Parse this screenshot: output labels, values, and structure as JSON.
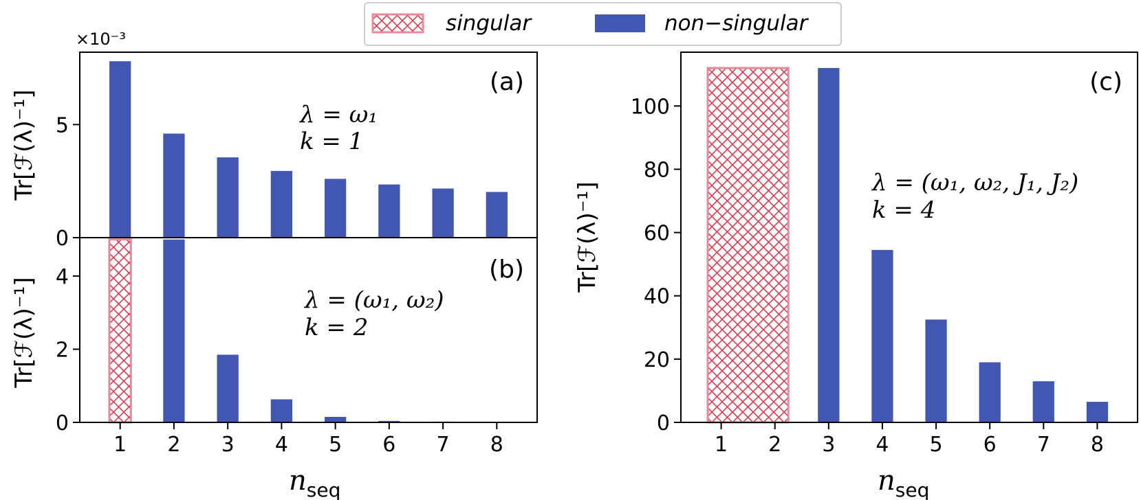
{
  "colors": {
    "nonsingular": "#4257b2",
    "singular_edge": "#e8899a",
    "singular_hatch": "#d83a4e"
  },
  "legend": {
    "singular": "singular",
    "nonsingular": "non−singular"
  },
  "chart_data": [
    {
      "panel": "(a)",
      "type": "bar",
      "categories": [
        1,
        2,
        3,
        4,
        5,
        6,
        7,
        8
      ],
      "values": [
        7.8,
        4.6,
        3.55,
        2.95,
        2.6,
        2.35,
        2.17,
        2.02
      ],
      "singular": [
        false,
        false,
        false,
        false,
        false,
        false,
        false,
        false
      ],
      "ylim": [
        0,
        8.2
      ],
      "yticks": [
        0,
        5
      ],
      "scale_label": "×10⁻³",
      "ylabel": "Tr[ℱ(λ)⁻¹]",
      "annotation": {
        "param": "λ = ω₁",
        "k": "k = 1"
      }
    },
    {
      "panel": "(b)",
      "type": "bar",
      "categories": [
        1,
        2,
        3,
        4,
        5,
        6,
        7,
        8
      ],
      "values": [
        5.0,
        5.0,
        1.85,
        0.63,
        0.15,
        0.04,
        0.02,
        0.01
      ],
      "singular": [
        true,
        false,
        false,
        false,
        false,
        false,
        false,
        false
      ],
      "ylim": [
        0,
        5.05
      ],
      "yticks": [
        0,
        2,
        4
      ],
      "ylabel": "Tr[ℱ(λ)⁻¹]",
      "annotation": {
        "param": "λ = (ω₁, ω₂)",
        "k": "k = 2"
      },
      "xlabel": "n_seq"
    },
    {
      "panel": "(c)",
      "type": "bar",
      "categories": [
        1,
        2,
        3,
        4,
        5,
        6,
        7,
        8
      ],
      "values": [
        112,
        112,
        112,
        54.5,
        32.5,
        19,
        13,
        6.5
      ],
      "singular": [
        true,
        true,
        false,
        false,
        false,
        false,
        false,
        false
      ],
      "ylim": [
        0,
        117
      ],
      "yticks": [
        0,
        20,
        40,
        60,
        80,
        100
      ],
      "ylabel": "Tr[ℱ(λ)⁻¹]",
      "annotation": {
        "param": "λ = (ω₁, ω₂, J₁, J₂)",
        "k": "k = 4"
      },
      "xlabel": "n_seq"
    }
  ]
}
